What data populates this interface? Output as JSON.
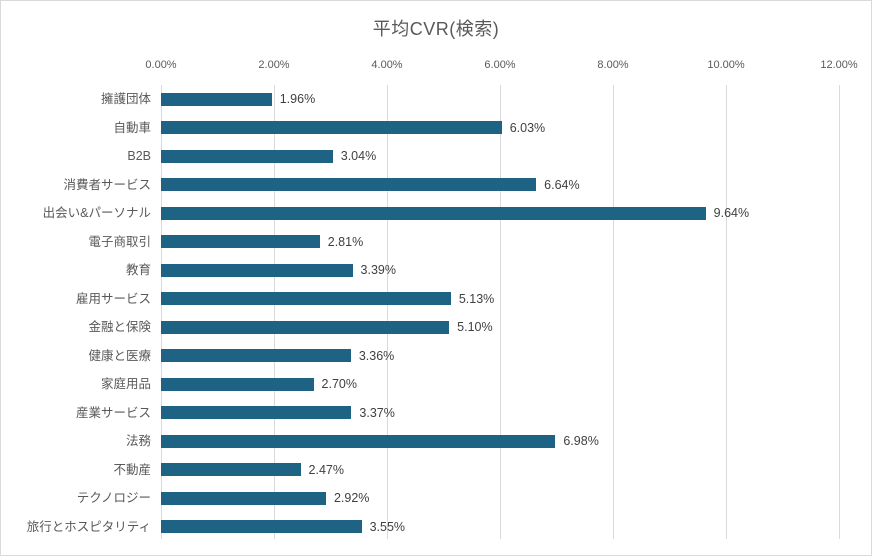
{
  "title": "平均CVR(検索)",
  "chart_data": {
    "type": "bar",
    "orientation": "horizontal",
    "title": "平均CVR(検索)",
    "categories": [
      "擁護団体",
      "自動車",
      "B2B",
      "消費者サービス",
      "出会い&パーソナル",
      "電子商取引",
      "教育",
      "雇用サービス",
      "金融と保険",
      "健康と医療",
      "家庭用品",
      "産業サービス",
      "法務",
      "不動産",
      "テクノロジー",
      "旅行とホスピタリティ"
    ],
    "values": [
      1.96,
      6.03,
      3.04,
      6.64,
      9.64,
      2.81,
      3.39,
      5.13,
      5.1,
      3.36,
      2.7,
      3.37,
      6.98,
      2.47,
      2.92,
      3.55
    ],
    "value_labels": [
      "1.96%",
      "6.03%",
      "3.04%",
      "6.64%",
      "9.64%",
      "2.81%",
      "3.39%",
      "5.13%",
      "5.10%",
      "3.36%",
      "2.70%",
      "3.37%",
      "6.98%",
      "2.47%",
      "2.92%",
      "3.55%"
    ],
    "x_ticks": [
      "0.00%",
      "2.00%",
      "4.00%",
      "6.00%",
      "8.00%",
      "10.00%",
      "12.00%"
    ],
    "x_tick_values": [
      0,
      2,
      4,
      6,
      8,
      10,
      12
    ],
    "xlim": [
      0,
      12
    ],
    "xlabel": "",
    "ylabel": "",
    "legend_position": "none",
    "grid": "vertical",
    "colors": {
      "bar": "#1f6384",
      "gridline": "#d9d9d9",
      "value_label": "#404040",
      "axis_text": "#595959",
      "title_text": "#595959",
      "background": "#ffffff",
      "chart_border": "#d9d9d9"
    }
  }
}
